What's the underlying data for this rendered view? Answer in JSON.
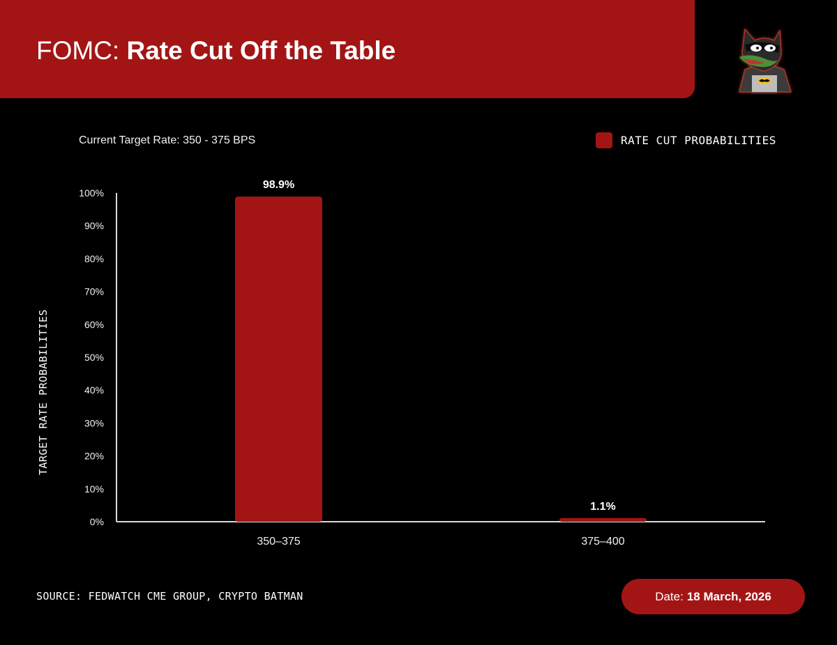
{
  "header": {
    "title_prefix": "FOMC:",
    "title_main": "Rate Cut Off the Table"
  },
  "subtitle": "Current Target Rate: 350 - 375 BPS",
  "legend": {
    "label": "RATE CUT PROBABILITIES"
  },
  "footer": {
    "source": "SOURCE: FEDWATCH CME GROUP, CRYPTO BATMAN",
    "date_label": "Date:",
    "date_value": "18 March, 2026"
  },
  "colors": {
    "accent": "#a31515",
    "background": "#000000",
    "text": "#ffffff"
  },
  "mascot": {
    "icon": "batman-pepe-mascot-icon"
  },
  "chart_data": {
    "type": "bar",
    "categories": [
      "350–375",
      "375–400"
    ],
    "values": [
      98.9,
      1.1
    ],
    "data_labels": [
      "98.9%",
      "1.1%"
    ],
    "title": "",
    "xlabel": "",
    "ylabel": "TARGET RATE PROBABILITIES",
    "ylim": [
      0,
      100
    ],
    "yticks": [
      0,
      10,
      20,
      30,
      40,
      50,
      60,
      70,
      80,
      90,
      100
    ],
    "ytick_labels": [
      "0%",
      "10%",
      "20%",
      "30%",
      "40%",
      "50%",
      "60%",
      "70%",
      "80%",
      "90%",
      "100%"
    ],
    "grid": false,
    "legend": "top-right"
  }
}
